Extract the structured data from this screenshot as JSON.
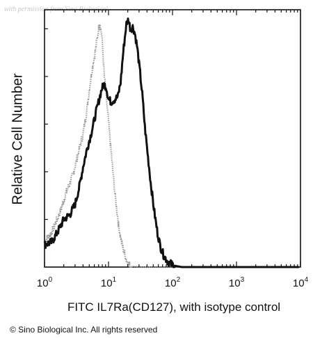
{
  "watermark": "with permission from Sino Biological",
  "copyright": "© Sino Biological Inc. All rights reserved",
  "chart_data": {
    "type": "line",
    "title": "",
    "xlabel": "FITC IL7Ra(CD127), with isotype control",
    "ylabel": "Relative Cell Number",
    "xscale": "log",
    "xlim": [
      1,
      10000
    ],
    "ylim": [
      0,
      100
    ],
    "grid": false,
    "legend": "none",
    "x_ticks": [
      {
        "value": 1,
        "base": "10",
        "exp": "0"
      },
      {
        "value": 10,
        "base": "10",
        "exp": "1"
      },
      {
        "value": 100,
        "base": "10",
        "exp": "2"
      },
      {
        "value": 1000,
        "base": "10",
        "exp": "3"
      },
      {
        "value": 10000,
        "base": "10",
        "exp": "4"
      }
    ],
    "series": [
      {
        "color": "#999999",
        "style": "dotted",
        "x": [
          1,
          1.3,
          1.7,
          2.2,
          2.8,
          3.4,
          4,
          4.6,
          5.2,
          5.8,
          6.3,
          6.8,
          7.3,
          7.9,
          8.5,
          9.2,
          10,
          11,
          12,
          13,
          14.5,
          16,
          17.5,
          19,
          21,
          24,
          30
        ],
        "y": [
          10,
          14,
          21,
          30,
          37,
          46,
          53,
          63,
          74,
          82,
          87,
          93,
          98,
          92,
          78,
          68,
          58,
          46,
          35,
          26,
          16,
          10,
          6,
          3,
          1,
          0.3,
          0
        ]
      },
      {
        "color": "#111111",
        "style": "solid",
        "x": [
          1,
          1.3,
          1.6,
          2,
          2.5,
          3,
          3.5,
          4,
          4.6,
          5.2,
          5.8,
          6.4,
          7,
          7.8,
          8.5,
          9.2,
          10,
          11,
          12.5,
          14,
          15.5,
          17,
          19,
          20.5,
          22,
          24,
          26,
          28,
          31,
          34,
          37,
          41,
          46,
          52,
          58,
          65,
          72,
          80,
          90,
          110,
          140
        ],
        "y": [
          9,
          10,
          14,
          19,
          21,
          25,
          32,
          40,
          47,
          52,
          57,
          62,
          66,
          71,
          73,
          72,
          67,
          66,
          67,
          68,
          74,
          86,
          97,
          99,
          95,
          96,
          93,
          88,
          78,
          68,
          56,
          45,
          33,
          22,
          14,
          8,
          5,
          3,
          1.5,
          0.5,
          0
        ]
      }
    ]
  }
}
